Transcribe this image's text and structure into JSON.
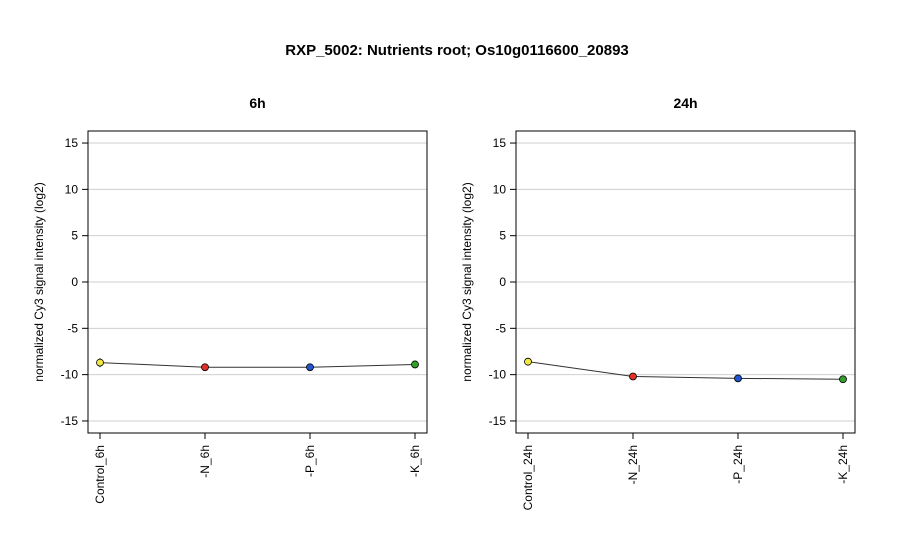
{
  "title": "RXP_5002: Nutrients root; Os10g0116600_20893",
  "colors": {
    "line": "#333333",
    "grid": "#cfcfcf",
    "axis": "#000000",
    "markers": [
      "#f2e640",
      "#e0302a",
      "#2255cc",
      "#33a02c"
    ]
  },
  "chart_data": [
    {
      "type": "line",
      "title": "6h",
      "ylabel": "normalized Cy3 signal intensity (log2)",
      "xlabel": "",
      "ylim": [
        -16.3,
        16.3
      ],
      "yticks": [
        "15",
        "10",
        "5",
        "0",
        "-5",
        "-10",
        "-15"
      ],
      "grid": true,
      "categories": [
        "Control_6h",
        "-N_6h",
        "-P_6h",
        "-K_6h"
      ],
      "values": [
        -8.7,
        -9.2,
        -9.2,
        -8.9
      ],
      "errors": [
        0.5,
        0.2,
        0.35,
        0.4
      ]
    },
    {
      "type": "line",
      "title": "24h",
      "ylabel": "normalized Cy3 signal intensity (log2)",
      "xlabel": "",
      "ylim": [
        -16.3,
        16.3
      ],
      "yticks": [
        "15",
        "10",
        "5",
        "0",
        "-5",
        "-10",
        "-15"
      ],
      "grid": true,
      "categories": [
        "Control_24h",
        "-N_24h",
        "-P_24h",
        "-K_24h"
      ],
      "values": [
        -8.6,
        -10.2,
        -10.4,
        -10.5
      ],
      "errors": [
        0.3,
        0.25,
        0.15,
        0.2
      ]
    }
  ]
}
